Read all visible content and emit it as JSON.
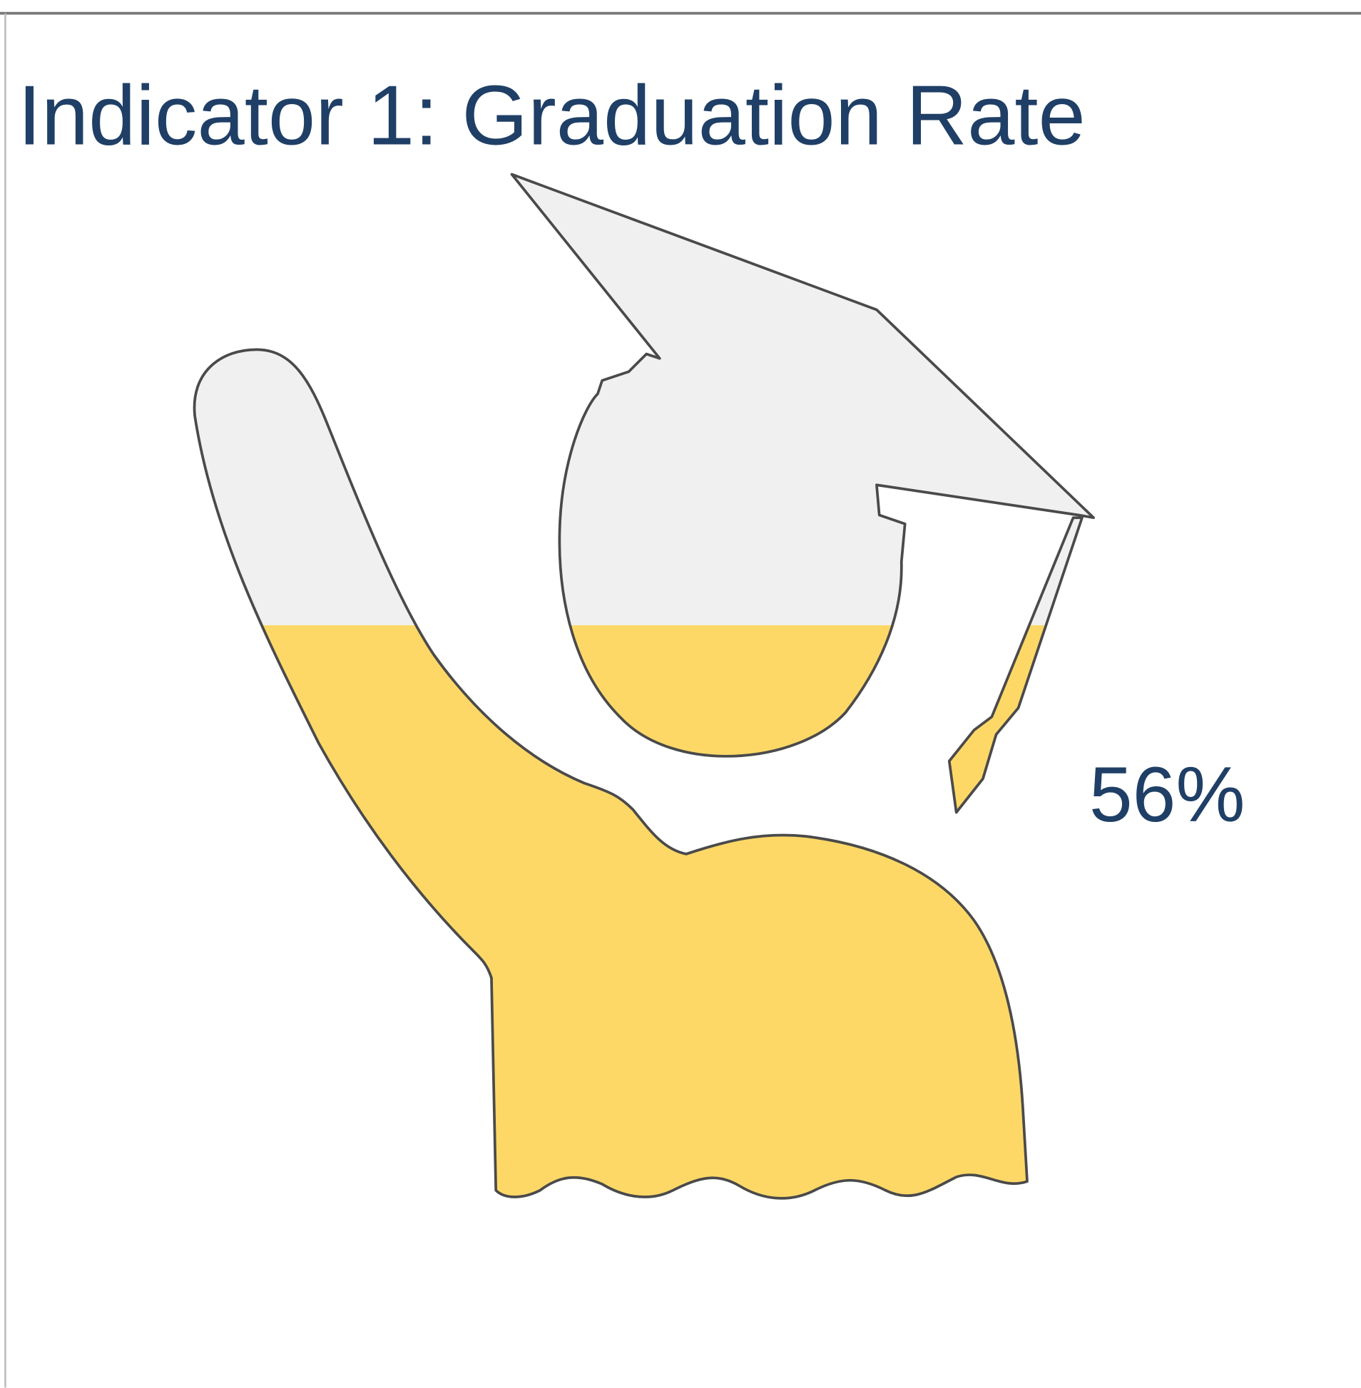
{
  "chart_data": {
    "type": "pictogram",
    "title": "Indicator 1:  Graduation Rate",
    "values": [
      56
    ],
    "value_labels": [
      "56%"
    ],
    "ylim": [
      0,
      100
    ],
    "color": "#fdd867",
    "empty_color": "#f0f0f0"
  }
}
